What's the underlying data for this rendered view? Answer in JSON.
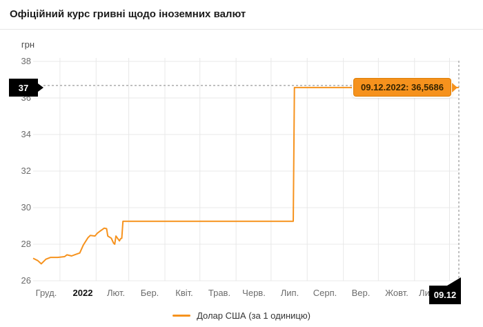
{
  "header": {
    "title": "Офіційний курс гривні щодо іноземних валют"
  },
  "yaxis": {
    "unit": "грн",
    "ticks": [
      "38",
      "36",
      "34",
      "32",
      "30",
      "28",
      "26"
    ]
  },
  "xaxis": {
    "labels": [
      {
        "text": "Груд."
      },
      {
        "text": "2022"
      },
      {
        "text": "Лют."
      },
      {
        "text": "Бер."
      },
      {
        "text": "Квіт."
      },
      {
        "text": "Трав."
      },
      {
        "text": "Черв."
      },
      {
        "text": "Лип."
      },
      {
        "text": "Серп."
      },
      {
        "text": "Вер."
      },
      {
        "text": "Жовт."
      },
      {
        "text": "Лис."
      }
    ]
  },
  "markers": {
    "y_badge": "37",
    "x_badge": "09.12",
    "tooltip": "09.12.2022: 36,5686"
  },
  "legend": {
    "label": "Долар США (за 1 одиницю)"
  },
  "colors": {
    "line": "#f6921d",
    "tooltip_bg": "#f6921d",
    "badge_bg": "#000000",
    "grid": "#e8e8e8",
    "dash": "#ababab"
  },
  "chart_data": {
    "type": "line",
    "title": "Офіційний курс гривні щодо іноземних валют",
    "xlabel": "",
    "ylabel": "грн",
    "ylim": [
      26,
      38
    ],
    "y_ticks": [
      26,
      28,
      30,
      32,
      34,
      36,
      38
    ],
    "x_range": [
      "2021-12-09",
      "2022-12-09"
    ],
    "x_tick_labels": [
      "Груд.",
      "2022",
      "Лют.",
      "Бер.",
      "Квіт.",
      "Трав.",
      "Черв.",
      "Лип.",
      "Серп.",
      "Вер.",
      "Жовт.",
      "Лис."
    ],
    "grid": true,
    "legend_position": "bottom",
    "series": [
      {
        "name": "Долар США (за 1 одиницю)",
        "color": "#f6921d",
        "points": [
          [
            "2021-12-09",
            27.23
          ],
          [
            "2021-12-13",
            27.1
          ],
          [
            "2021-12-16",
            26.93
          ],
          [
            "2021-12-20",
            27.18
          ],
          [
            "2021-12-24",
            27.28
          ],
          [
            "2021-12-30",
            27.28
          ],
          [
            "2022-01-05",
            27.32
          ],
          [
            "2022-01-07",
            27.42
          ],
          [
            "2022-01-11",
            27.36
          ],
          [
            "2022-01-14",
            27.43
          ],
          [
            "2022-01-18",
            27.52
          ],
          [
            "2022-01-21",
            27.95
          ],
          [
            "2022-01-25",
            28.35
          ],
          [
            "2022-01-27",
            28.48
          ],
          [
            "2022-01-31",
            28.45
          ],
          [
            "2022-02-02",
            28.6
          ],
          [
            "2022-02-04",
            28.7
          ],
          [
            "2022-02-08",
            28.88
          ],
          [
            "2022-02-10",
            28.85
          ],
          [
            "2022-02-11",
            28.45
          ],
          [
            "2022-02-14",
            28.33
          ],
          [
            "2022-02-16",
            28.06
          ],
          [
            "2022-02-17",
            28.0
          ],
          [
            "2022-02-18",
            28.45
          ],
          [
            "2022-02-21",
            28.18
          ],
          [
            "2022-02-22",
            28.3
          ],
          [
            "2022-02-23",
            28.33
          ],
          [
            "2022-02-24",
            29.2549
          ],
          [
            "2022-07-20",
            29.2549
          ],
          [
            "2022-07-21",
            36.5686
          ],
          [
            "2022-12-09",
            36.5686
          ]
        ]
      }
    ],
    "current": {
      "date": "09.12.2022",
      "value": 36.5686,
      "label": "09.12.2022: 36,5686"
    }
  }
}
